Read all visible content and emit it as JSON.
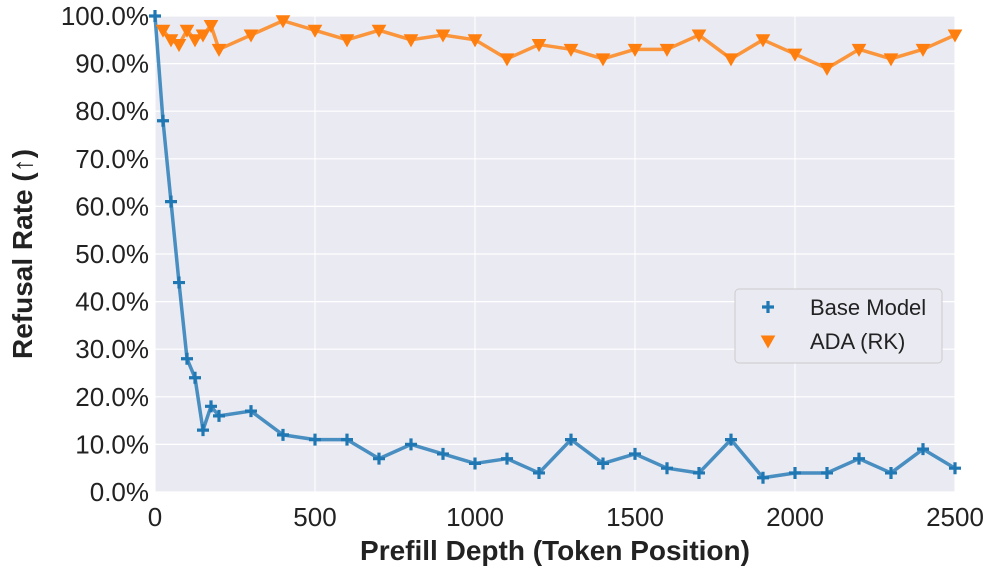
{
  "chart_data": {
    "type": "line",
    "xlabel": "Prefill Depth (Token Position)",
    "ylabel": "Refusal Rate (↑)",
    "xlim": [
      0,
      2500
    ],
    "ylim": [
      0,
      100
    ],
    "x_ticks": [
      0,
      500,
      1000,
      1500,
      2000,
      2500
    ],
    "y_ticks": [
      0,
      10,
      20,
      30,
      40,
      50,
      60,
      70,
      80,
      90,
      100
    ],
    "y_tick_format": "percent_1dp",
    "grid": true,
    "legend_position": "center-right",
    "series": [
      {
        "name": "Base Model",
        "color": "#1f77b4",
        "marker": "plus",
        "points": [
          [
            0,
            100
          ],
          [
            25,
            78
          ],
          [
            50,
            61
          ],
          [
            75,
            44
          ],
          [
            100,
            28
          ],
          [
            125,
            24
          ],
          [
            150,
            13
          ],
          [
            175,
            18
          ],
          [
            200,
            16
          ],
          [
            300,
            17
          ],
          [
            400,
            12
          ],
          [
            500,
            11
          ],
          [
            600,
            11
          ],
          [
            700,
            7
          ],
          [
            800,
            10
          ],
          [
            900,
            8
          ],
          [
            1000,
            6
          ],
          [
            1100,
            7
          ],
          [
            1200,
            4
          ],
          [
            1300,
            11
          ],
          [
            1400,
            6
          ],
          [
            1500,
            8
          ],
          [
            1600,
            5
          ],
          [
            1700,
            4
          ],
          [
            1800,
            11
          ],
          [
            1900,
            3
          ],
          [
            2000,
            4
          ],
          [
            2100,
            4
          ],
          [
            2200,
            7
          ],
          [
            2300,
            4
          ],
          [
            2400,
            9
          ],
          [
            2500,
            5
          ]
        ]
      },
      {
        "name": "ADA (RK)",
        "color": "#ff7f0e",
        "marker": "triangle-down",
        "points": [
          [
            25,
            97
          ],
          [
            50,
            95
          ],
          [
            75,
            94
          ],
          [
            100,
            97
          ],
          [
            125,
            95
          ],
          [
            150,
            96
          ],
          [
            175,
            98
          ],
          [
            200,
            93
          ],
          [
            300,
            96
          ],
          [
            400,
            99
          ],
          [
            500,
            97
          ],
          [
            600,
            95
          ],
          [
            700,
            97
          ],
          [
            800,
            95
          ],
          [
            900,
            96
          ],
          [
            1000,
            95
          ],
          [
            1100,
            91
          ],
          [
            1200,
            94
          ],
          [
            1300,
            93
          ],
          [
            1400,
            91
          ],
          [
            1500,
            93
          ],
          [
            1600,
            93
          ],
          [
            1700,
            96
          ],
          [
            1800,
            91
          ],
          [
            1900,
            95
          ],
          [
            2000,
            92
          ],
          [
            2100,
            89
          ],
          [
            2200,
            93
          ],
          [
            2300,
            91
          ],
          [
            2400,
            93
          ],
          [
            2500,
            96
          ]
        ]
      }
    ]
  }
}
